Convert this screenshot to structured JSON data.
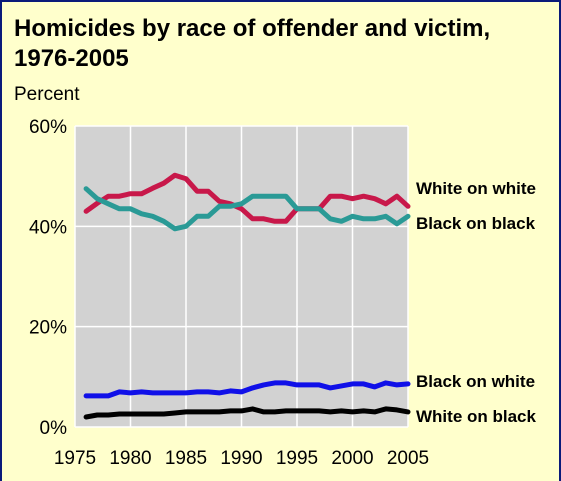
{
  "chart_data": {
    "type": "line",
    "title": "Homicides by race of offender and victim, 1976-2005",
    "ylabel": "Percent",
    "xlabel": "",
    "ylim": [
      0,
      60
    ],
    "xlim": [
      1975,
      2005
    ],
    "yticks": [
      {
        "value": 0,
        "label": "0%"
      },
      {
        "value": 20,
        "label": "20%"
      },
      {
        "value": 40,
        "label": "40%"
      },
      {
        "value": 60,
        "label": "60%"
      }
    ],
    "xticks": [
      {
        "value": 1975,
        "label": "1975"
      },
      {
        "value": 1980,
        "label": "1980"
      },
      {
        "value": 1985,
        "label": "1985"
      },
      {
        "value": 1990,
        "label": "1990"
      },
      {
        "value": 1995,
        "label": "1995"
      },
      {
        "value": 2000,
        "label": "2000"
      },
      {
        "value": 2005,
        "label": "2005"
      }
    ],
    "grid": true,
    "legend": "inline-right",
    "x": [
      1976,
      1977,
      1978,
      1979,
      1980,
      1981,
      1982,
      1983,
      1984,
      1985,
      1986,
      1987,
      1988,
      1989,
      1990,
      1991,
      1992,
      1993,
      1994,
      1995,
      1996,
      1997,
      1998,
      1999,
      2000,
      2001,
      2002,
      2003,
      2004,
      2005
    ],
    "series": [
      {
        "name": "White on white",
        "color": "#c8184a",
        "values": [
          43,
          44.6,
          46,
          46,
          46.5,
          46.5,
          47.6,
          48.6,
          50.2,
          49.5,
          47,
          47,
          45,
          44.5,
          43.5,
          41.5,
          41.5,
          41,
          41,
          43.5,
          43.5,
          43.5,
          46,
          46,
          45.5,
          46,
          45.5,
          44.5,
          46,
          44
        ]
      },
      {
        "name": "Black on black",
        "color": "#2a9a96",
        "values": [
          47.5,
          45.5,
          44.5,
          43.5,
          43.5,
          42.5,
          42,
          41,
          39.5,
          40,
          42,
          42,
          44,
          44,
          44.5,
          46,
          46,
          46,
          46,
          43.5,
          43.5,
          43.5,
          41.5,
          41,
          42,
          41.5,
          41.5,
          42,
          40.5,
          42
        ]
      },
      {
        "name": "Black on white",
        "color": "#1010e8",
        "values": [
          6.2,
          6.2,
          6.2,
          7,
          6.8,
          7,
          6.8,
          6.8,
          6.8,
          6.8,
          7,
          7,
          6.8,
          7.2,
          7,
          7.8,
          8.4,
          8.8,
          8.8,
          8.4,
          8.4,
          8.4,
          7.8,
          8.2,
          8.6,
          8.6,
          8,
          8.8,
          8.4,
          8.6
        ]
      },
      {
        "name": "White on black",
        "color": "#000000",
        "values": [
          2,
          2.4,
          2.4,
          2.6,
          2.6,
          2.6,
          2.6,
          2.6,
          2.8,
          3,
          3,
          3,
          3,
          3.2,
          3.2,
          3.6,
          3,
          3,
          3.2,
          3.2,
          3.2,
          3.2,
          3,
          3.2,
          3,
          3.2,
          3,
          3.6,
          3.4,
          3
        ]
      }
    ]
  }
}
